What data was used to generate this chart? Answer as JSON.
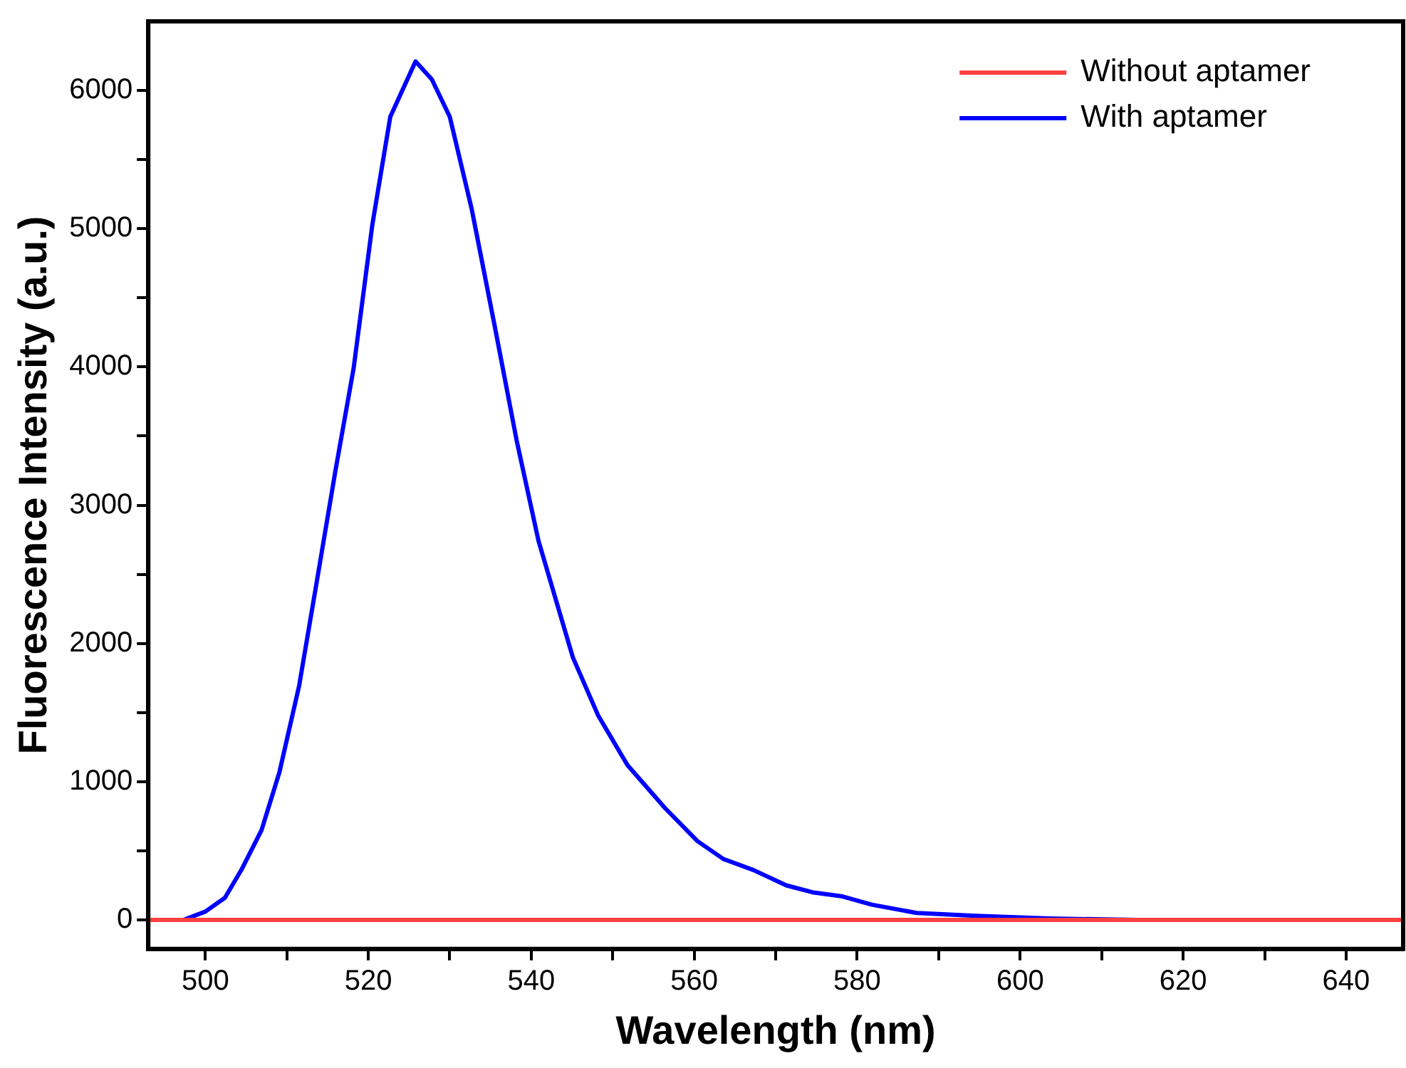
{
  "chart_data": {
    "type": "line",
    "xlabel": "Wavelength (nm)",
    "ylabel": "Fluorescence Intensity (a.u.)",
    "xlim": [
      493,
      647
    ],
    "ylim": [
      -210,
      6500
    ],
    "xticks": [
      500,
      {
        "value": 510,
        "label": null
      },
      520,
      {
        "value": 530,
        "label": null
      },
      540,
      {
        "value": 550,
        "label": null
      },
      560,
      {
        "value": 570,
        "label": null
      },
      580,
      {
        "value": 590,
        "label": null
      },
      600,
      {
        "value": 610,
        "label": null
      },
      620,
      {
        "value": 630,
        "label": null
      },
      640
    ],
    "yticks": [
      0,
      {
        "value": 500,
        "label": null
      },
      1000,
      {
        "value": 1500,
        "label": null
      },
      2000,
      {
        "value": 2500,
        "label": null
      },
      3000,
      {
        "value": 3500,
        "label": null
      },
      4000,
      {
        "value": 4500,
        "label": null
      },
      5000,
      {
        "value": 5500,
        "label": null
      },
      6000
    ],
    "grid": false,
    "legend": "top right",
    "marker": "none",
    "line_style": "solid",
    "series": [
      {
        "name": "Without aptamer",
        "color": "#ff4040",
        "x": [
          493,
          647
        ],
        "values": [
          0,
          0
        ]
      },
      {
        "name": "With aptamer",
        "color": "#0000ff",
        "x": [
          497.3,
          500,
          502.4,
          504.5,
          506.9,
          509.1,
          511.5,
          513.6,
          516,
          518.2,
          520.5,
          522.7,
          525.8,
          527.8,
          530,
          532.7,
          535.5,
          538.2,
          540.9,
          545.1,
          548.2,
          551.8,
          556.4,
          560.4,
          563.6,
          567.3,
          571.3,
          574.5,
          578.2,
          581.8,
          587.3,
          594.5,
          603.6,
          614.5
        ],
        "values": [
          0,
          60,
          160,
          370,
          650,
          1070,
          1690,
          2420,
          3260,
          3990,
          5030,
          5810,
          6210,
          6080,
          5810,
          5140,
          4300,
          3470,
          2740,
          1900,
          1480,
          1120,
          810,
          570,
          440,
          360,
          250,
          200,
          170,
          110,
          50,
          30,
          10,
          0
        ]
      }
    ]
  }
}
